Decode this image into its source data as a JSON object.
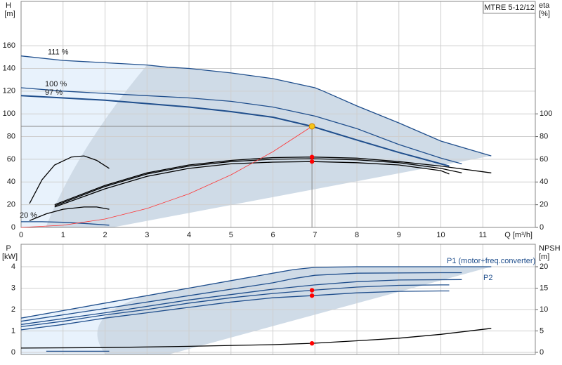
{
  "chart_data": [
    {
      "type": "line",
      "title": "MTRE 5-12/12",
      "x_label": "Q [m³/h]",
      "y_label": "H",
      "y_unit": "[m]",
      "y2_label": "eta",
      "y2_unit": "[%]",
      "xlim": [
        0,
        12.25
      ],
      "xticks": [
        0,
        1,
        2,
        3,
        4,
        5,
        6,
        7,
        8,
        9,
        10,
        11
      ],
      "ylim": [
        0,
        199
      ],
      "yticks": [
        0,
        20,
        40,
        60,
        80,
        100,
        120,
        140,
        160
      ],
      "y2lim": [
        0,
        199
      ],
      "y2ticks": [
        0,
        20,
        40,
        60,
        80,
        100
      ],
      "grid": true,
      "series": [
        {
          "name": "111 %",
          "color": "#1f4e8c",
          "x": [
            0,
            1,
            2,
            3,
            3.5,
            4,
            5,
            6,
            6.5,
            7,
            7.2,
            8,
            9,
            10,
            11.2
          ],
          "values": [
            151,
            147,
            145,
            143,
            141,
            140,
            136,
            131,
            127,
            123,
            120,
            107,
            92,
            76,
            63
          ]
        },
        {
          "name": "100 %",
          "color": "#1f4e8c",
          "x": [
            0,
            1,
            2,
            3,
            4,
            5,
            6,
            7,
            8,
            9,
            10,
            10.5
          ],
          "values": [
            123,
            120,
            118,
            116,
            114,
            111,
            106,
            98,
            87,
            73,
            61,
            56
          ]
        },
        {
          "name": "97 %",
          "color": "#1f4e8c",
          "x": [
            0,
            1,
            2,
            3,
            4,
            5,
            6,
            6.93,
            8,
            9,
            10,
            10.2
          ],
          "values": [
            116,
            114,
            112,
            109,
            106,
            102,
            97,
            89,
            77,
            66,
            56,
            54
          ]
        },
        {
          "name": "20 %",
          "color": "#1f4e8c",
          "x": [
            0,
            0.5,
            1,
            1.5,
            2.1
          ],
          "values": [
            5,
            5,
            4.5,
            3.5,
            2
          ]
        },
        {
          "color": "#000000",
          "axis": "y2",
          "x": [
            0.8,
            2,
            3,
            4,
            5,
            6,
            6.93,
            8,
            9,
            10,
            11.2
          ],
          "values": [
            20,
            37,
            48,
            55,
            59,
            61.5,
            62,
            61,
            58,
            54,
            48
          ]
        },
        {
          "color": "#000000",
          "axis": "y2",
          "x": [
            0.8,
            2,
            3,
            4,
            5,
            6,
            6.93,
            8,
            9,
            10,
            10.5
          ],
          "values": [
            19,
            36,
            47,
            54,
            58,
            60,
            60.5,
            59.5,
            57,
            52,
            48
          ]
        },
        {
          "color": "#000000",
          "axis": "y2",
          "x": [
            0.8,
            2,
            3,
            4,
            5,
            6,
            6.93,
            8,
            9,
            10,
            10.2
          ],
          "values": [
            18,
            34,
            45,
            52,
            56,
            57.5,
            58,
            57,
            55,
            50,
            47
          ]
        },
        {
          "color": "#000000",
          "axis": "y2",
          "x": [
            0.2,
            0.5,
            0.8,
            1.2,
            1.5,
            1.8,
            2.1
          ],
          "values": [
            21,
            42,
            55,
            62,
            63,
            59,
            52
          ]
        },
        {
          "color": "#000000",
          "axis": "y2",
          "x": [
            0.2,
            0.6,
            1,
            1.5,
            1.8,
            2.1
          ],
          "values": [
            6,
            12,
            16,
            18,
            18,
            16
          ]
        },
        {
          "color": "#ff3333",
          "x": [
            0,
            1,
            2,
            3,
            4,
            5,
            6,
            6.93
          ],
          "values": [
            0,
            1.9,
            7.4,
            16.7,
            29.6,
            46.3,
            66.7,
            89
          ]
        }
      ],
      "points": [
        {
          "x": 6.93,
          "y": 89,
          "color": "#f5c518"
        },
        {
          "x": 6.93,
          "y": 62,
          "color": "#ff0000",
          "axis": "y2"
        },
        {
          "x": 6.93,
          "y": 58,
          "color": "#ff0000",
          "axis": "y2"
        }
      ]
    },
    {
      "type": "line",
      "y_label": "P",
      "y_unit": "[kW]",
      "y2_label": "NPSH",
      "y2_unit": "[m]",
      "annotations": [
        "P1 (motor+freq.converter)",
        "P2"
      ],
      "xlim": [
        0,
        12.25
      ],
      "xticks": [
        0,
        1,
        2,
        3,
        4,
        5,
        6,
        7,
        8,
        9,
        10,
        11
      ],
      "ylim": [
        -0.1,
        5.05
      ],
      "yticks": [
        0,
        1,
        2,
        3,
        4
      ],
      "y2lim": [
        -0.5,
        25.25
      ],
      "y2ticks": [
        0,
        5,
        10,
        15,
        20
      ],
      "grid": true,
      "series": [
        {
          "color": "#1f4e8c",
          "x": [
            0,
            1,
            2,
            3,
            4,
            5,
            6,
            6.5,
            7,
            8,
            9,
            10,
            11.2
          ],
          "values": [
            1.6,
            1.95,
            2.3,
            2.65,
            3.0,
            3.35,
            3.7,
            3.87,
            3.97,
            4.0,
            4.0,
            4.0,
            4.0
          ]
        },
        {
          "color": "#1f4e8c",
          "x": [
            0,
            2,
            4,
            6,
            6.5,
            7,
            8,
            10,
            10.5
          ],
          "values": [
            1.45,
            2.05,
            2.65,
            3.25,
            3.45,
            3.6,
            3.7,
            3.72,
            3.72
          ]
        },
        {
          "color": "#1f4e8c",
          "x": [
            0,
            2,
            4,
            6,
            7,
            8,
            9,
            10.5
          ],
          "values": [
            1.3,
            1.85,
            2.45,
            2.95,
            3.15,
            3.3,
            3.38,
            3.4
          ]
        },
        {
          "color": "#1f4e8c",
          "x": [
            0,
            1,
            2,
            3,
            4,
            5,
            6,
            6.93,
            8,
            9,
            10,
            10.2
          ],
          "values": [
            1.2,
            1.45,
            1.75,
            2.0,
            2.3,
            2.55,
            2.75,
            2.9,
            3.05,
            3.13,
            3.15,
            3.15
          ]
        },
        {
          "color": "#1f4e8c",
          "x": [
            0,
            1,
            2,
            3,
            4,
            5,
            6,
            6.93,
            8,
            9,
            10,
            10.2
          ],
          "values": [
            1.05,
            1.3,
            1.6,
            1.85,
            2.1,
            2.35,
            2.55,
            2.65,
            2.78,
            2.85,
            2.87,
            2.87
          ]
        },
        {
          "color": "#1f4e8c",
          "x": [
            0.6,
            2.1
          ],
          "values": [
            0.05,
            0.05
          ]
        },
        {
          "color": "#000000",
          "axis": "y2",
          "x": [
            0,
            2,
            4,
            6,
            6.93,
            8,
            9,
            10,
            11.2
          ],
          "values": [
            1,
            1.1,
            1.4,
            1.8,
            2.1,
            2.7,
            3.3,
            4.2,
            5.6
          ]
        }
      ],
      "points": [
        {
          "x": 6.93,
          "y": 2.9,
          "color": "#ff0000"
        },
        {
          "x": 6.93,
          "y": 2.65,
          "color": "#ff0000"
        },
        {
          "x": 6.93,
          "y": 2.1,
          "color": "#ff0000",
          "axis": "y2"
        }
      ]
    }
  ]
}
